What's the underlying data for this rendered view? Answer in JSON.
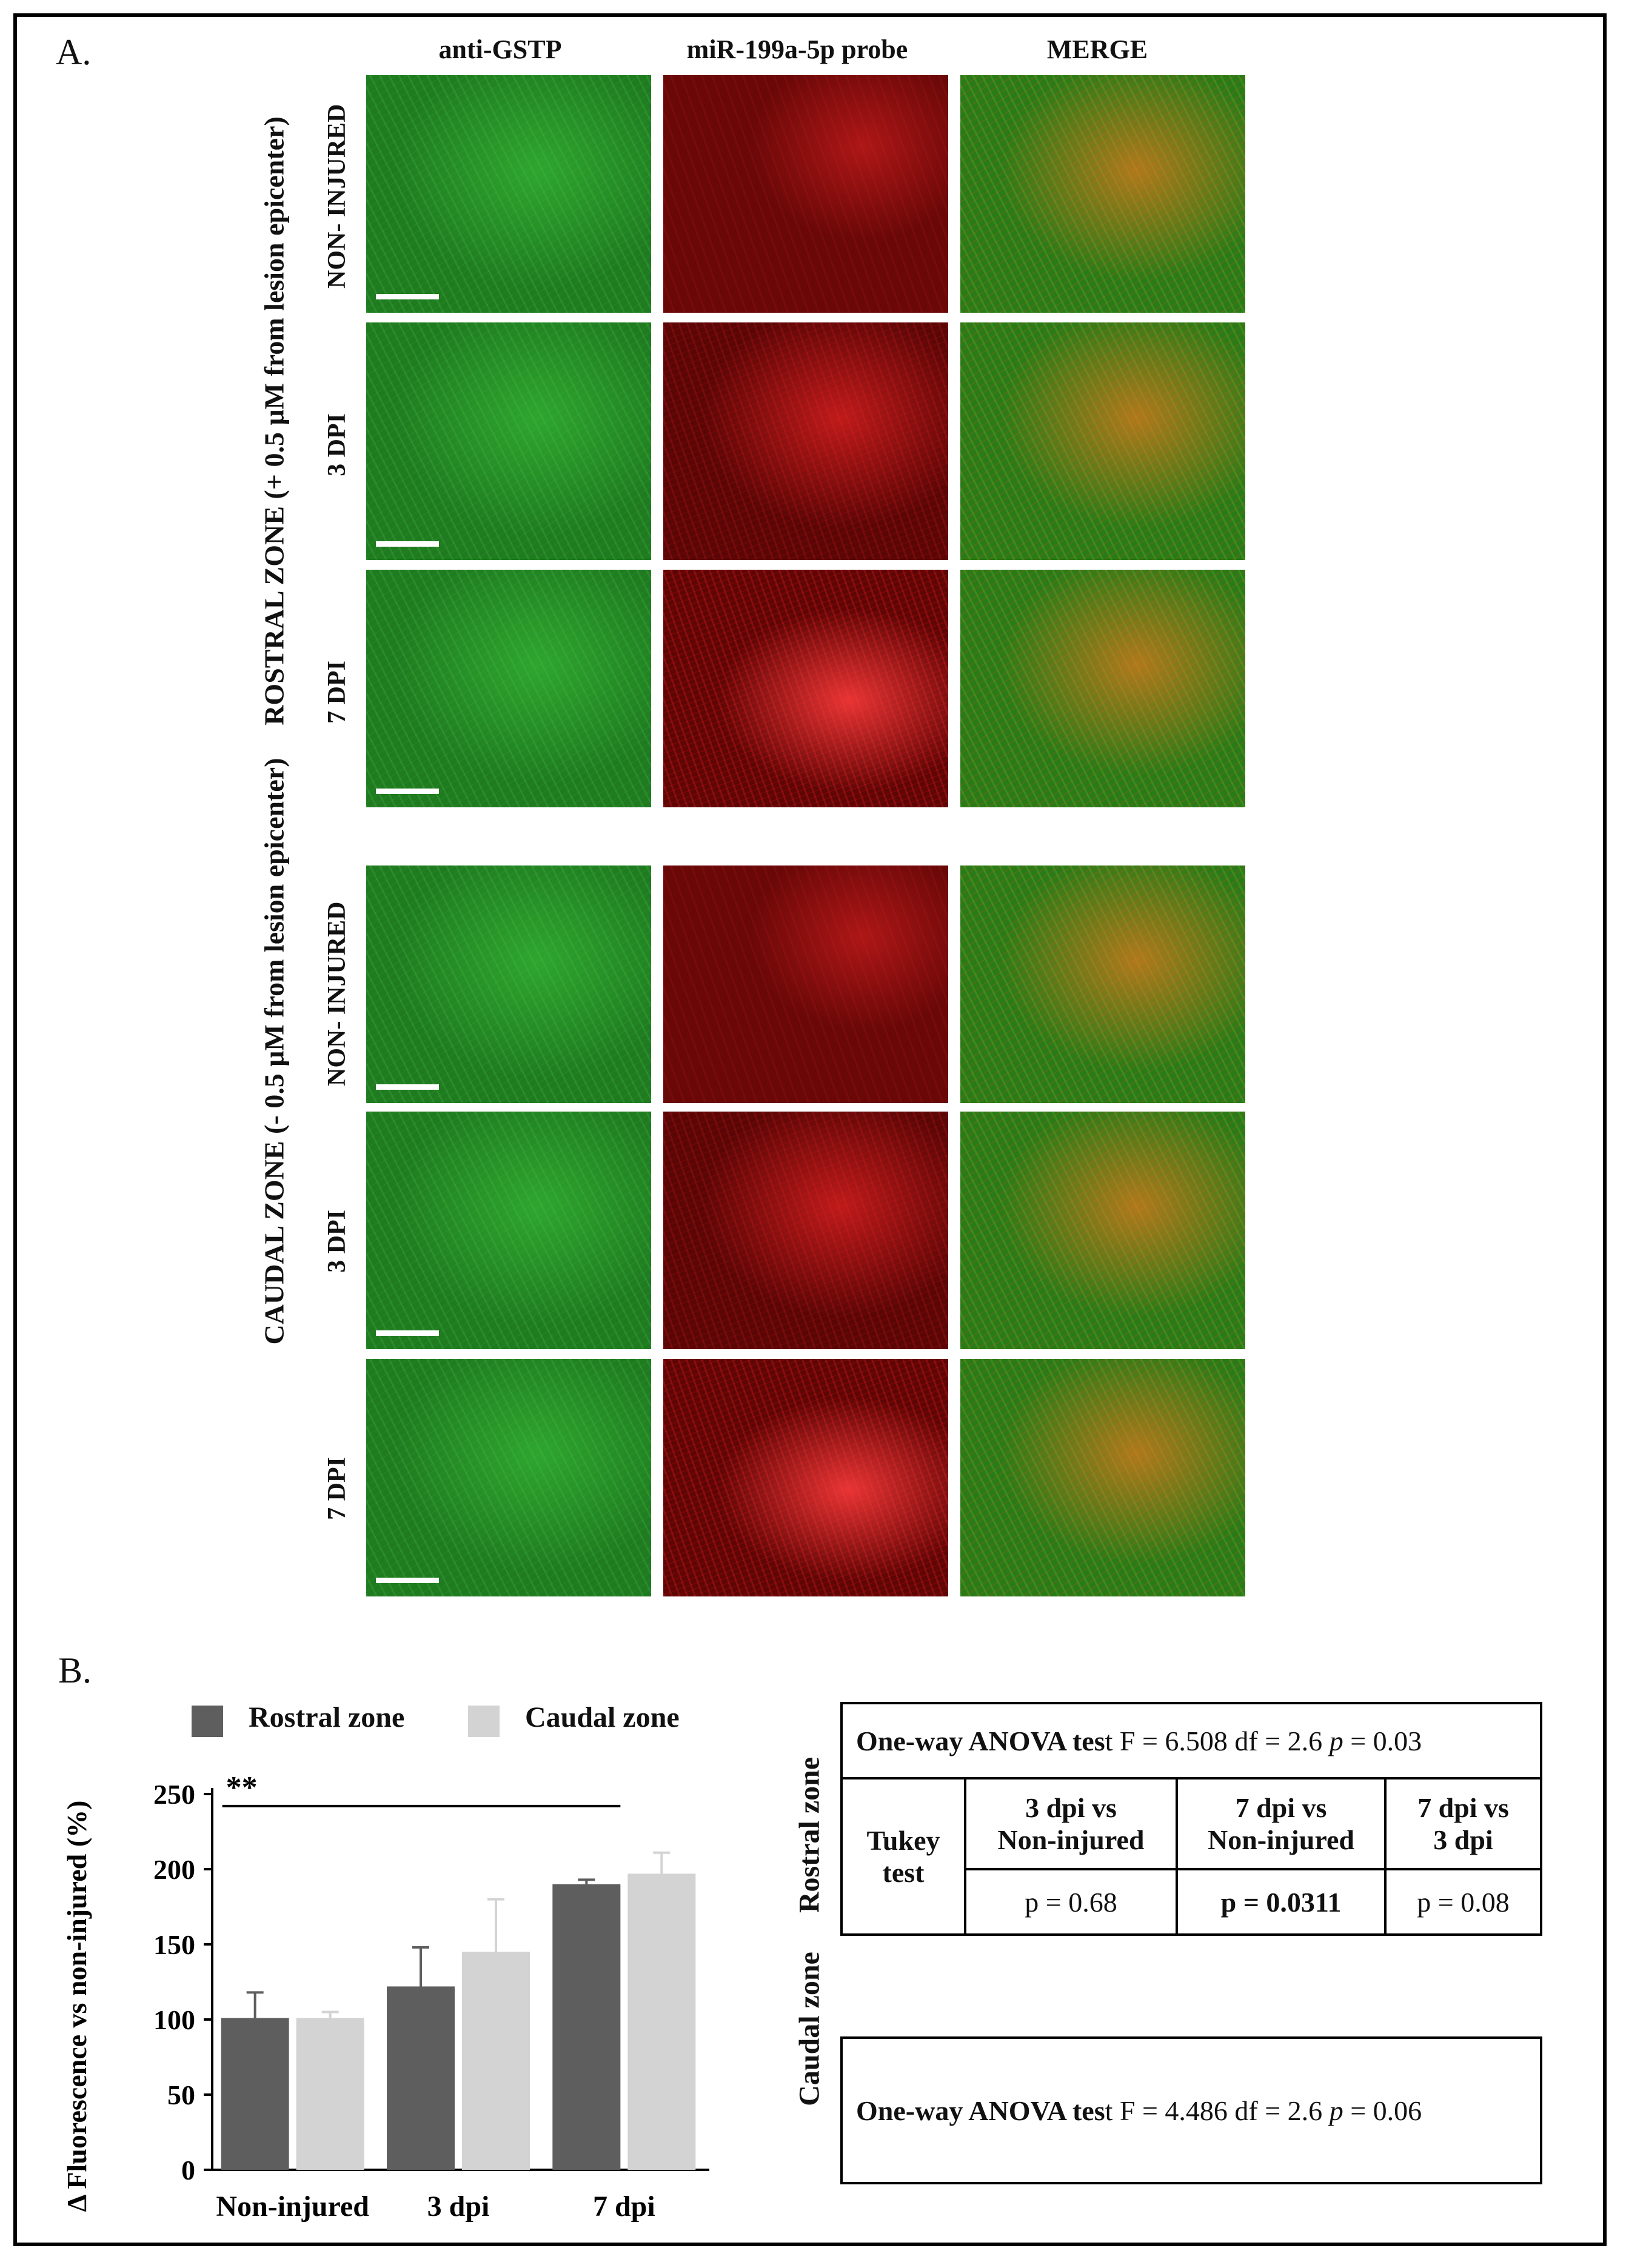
{
  "panel_a": {
    "letter": "A.",
    "columns": [
      "anti-GSTP",
      "miR-199a-5p probe",
      "MERGE"
    ],
    "zones": [
      {
        "label": "ROSTRAL ZONE (+ 0.5 μM from lesion epicenter)",
        "rows": [
          "NON- INJURED",
          "3 DPI",
          "7 DPI"
        ]
      },
      {
        "label": "CAUDAL ZONE (- 0.5 μM from lesion epicenter)",
        "rows": [
          "NON- INJURED",
          "3 DPI",
          "7 DPI"
        ]
      }
    ]
  },
  "panel_b": {
    "letter": "B.",
    "legend": [
      "Rostral zone",
      "Caudal zone"
    ],
    "colors": {
      "rostral": "#5e5e5e",
      "caudal": "#d3d3d3"
    },
    "rostral_label": "Rostral zone",
    "caudal_label": "Caudal zone",
    "rostral_table": {
      "anova": {
        "prefix": "One-way ANOVA tes",
        "suffix": "t F = 6.508  df = 2.6  ",
        "p_italic": "p",
        "p_val": " = 0.03"
      },
      "tukey_label_1": "Tukey",
      "tukey_label_2": "test",
      "headers": [
        [
          "3 dpi vs",
          "Non-injured"
        ],
        [
          "7 dpi vs",
          "Non-injured"
        ],
        [
          "7 dpi vs",
          "3 dpi"
        ]
      ],
      "values": [
        "p = 0.68",
        "p = 0.0311",
        "p = 0.08"
      ]
    },
    "caudal_table": {
      "anova": {
        "prefix": "One-way ANOVA tes",
        "suffix": "t F = 4.486  df = 2.6  ",
        "p_italic": "p",
        "p_val": " = 0.06"
      }
    }
  },
  "chart_data": {
    "type": "bar",
    "categories": [
      "Non-injured",
      "3 dpi",
      "7 dpi"
    ],
    "series": [
      {
        "name": "Rostral zone",
        "values": [
          101,
          122,
          190
        ],
        "errors": [
          17,
          26,
          3
        ]
      },
      {
        "name": "Caudal zone",
        "values": [
          101,
          145,
          197
        ],
        "errors": [
          4,
          35,
          14
        ]
      }
    ],
    "ylabel": "Δ Fluorescence vs non-injured (%)",
    "yticks": [
      0,
      50,
      100,
      150,
      200,
      250
    ],
    "ylim": [
      0,
      250
    ],
    "annotation": "**",
    "grid": false,
    "legend": "top"
  }
}
